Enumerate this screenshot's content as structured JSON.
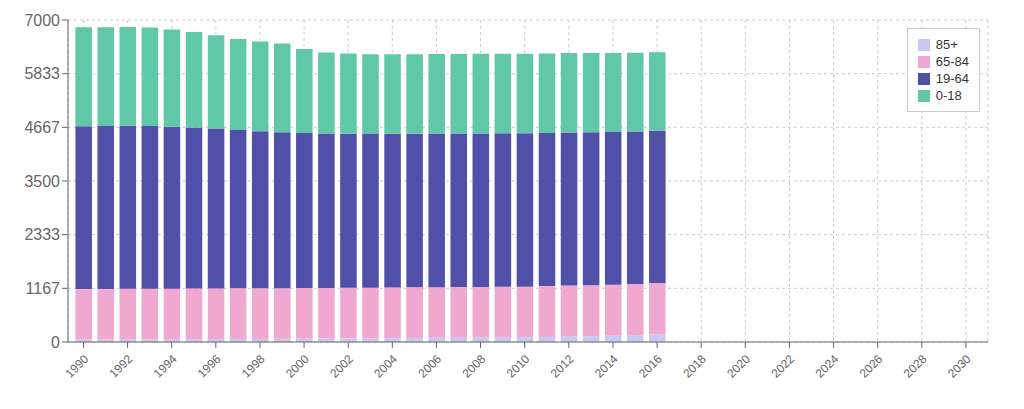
{
  "chart_data": {
    "type": "bar",
    "stacked": true,
    "x": [
      1990,
      1991,
      1992,
      1993,
      1994,
      1995,
      1996,
      1997,
      1998,
      1999,
      2000,
      2001,
      2002,
      2003,
      2004,
      2005,
      2006,
      2007,
      2008,
      2009,
      2010,
      2011,
      2012,
      2013,
      2014,
      2015,
      2016
    ],
    "series": [
      {
        "name": "85+",
        "color": "#c8c8f0",
        "values": [
          55,
          55,
          57,
          58,
          60,
          62,
          64,
          66,
          68,
          70,
          73,
          76,
          79,
          82,
          85,
          88,
          91,
          94,
          97,
          100,
          103,
          110,
          118,
          126,
          135,
          148,
          162
        ]
      },
      {
        "name": "65-84",
        "color": "#f0a8d0",
        "values": [
          1095,
          1095,
          1098,
          1100,
          1100,
          1100,
          1100,
          1100,
          1100,
          1100,
          1100,
          1100,
          1100,
          1100,
          1100,
          1100,
          1100,
          1100,
          1100,
          1100,
          1100,
          1105,
          1110,
          1110,
          1110,
          1115,
          1118
        ]
      },
      {
        "name": "19-64",
        "color": "#5050a8",
        "values": [
          3540,
          3545,
          3545,
          3538,
          3520,
          3500,
          3480,
          3440,
          3415,
          3390,
          3370,
          3355,
          3348,
          3340,
          3342,
          3340,
          3340,
          3338,
          3337,
          3337,
          3337,
          3330,
          3327,
          3325,
          3320,
          3315,
          3310
        ]
      },
      {
        "name": "0-18",
        "color": "#60c8a8",
        "values": [
          2150,
          2150,
          2150,
          2140,
          2115,
          2078,
          2025,
          1980,
          1950,
          1930,
          1825,
          1760,
          1745,
          1735,
          1728,
          1728,
          1730,
          1730,
          1730,
          1730,
          1725,
          1728,
          1728,
          1722,
          1718,
          1712,
          1708
        ]
      }
    ],
    "xlim": [
      1989.3,
      2031
    ],
    "xticks": [
      1990,
      1992,
      1994,
      1996,
      1998,
      2000,
      2002,
      2004,
      2006,
      2008,
      2010,
      2012,
      2014,
      2016,
      2018,
      2020,
      2022,
      2024,
      2026,
      2028,
      2030
    ],
    "ylim": [
      0,
      7000
    ],
    "yticks": [
      0,
      1167,
      2333,
      3500,
      4667,
      5833,
      7000
    ],
    "grid": true,
    "legend": "upper right"
  }
}
